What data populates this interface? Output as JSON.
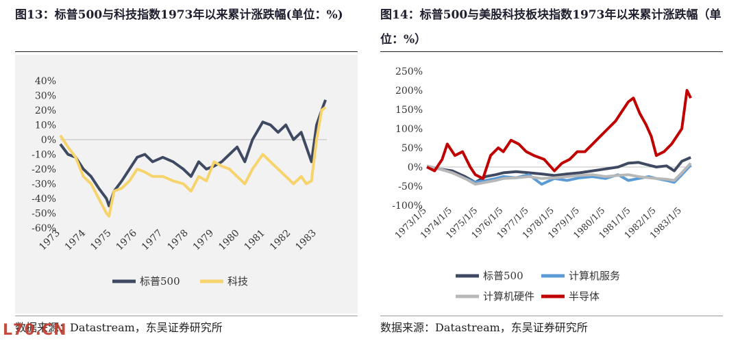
{
  "left": {
    "title": "图13：标普500与科技指数1973年以来累计涨跌幅(单位：%)",
    "source": "数据来源：Datastream，东吴证券研究所"
  },
  "right": {
    "title": "图14：标普500与美股科技板块指数1973年以来累计涨跌幅（单位：%）",
    "source": "数据来源：Datastream，东吴证券研究所"
  },
  "watermark": "L70.CN",
  "chart_data": [
    {
      "type": "line",
      "title": "标普500与科技指数1973年以来累计涨跌幅",
      "ylim": [
        -60,
        40
      ],
      "yticks": [
        "40%",
        "30%",
        "20%",
        "10%",
        "0%",
        "-10%",
        "-20%",
        "-30%",
        "-40%",
        "-50%",
        "-60%"
      ],
      "ytick_values": [
        40,
        30,
        20,
        10,
        0,
        -10,
        -20,
        -30,
        -40,
        -50,
        -60
      ],
      "xlim": [
        1973,
        1983.4
      ],
      "xticks": [
        "1973",
        "1974",
        "1975",
        "1976",
        "1977",
        "1978",
        "1979",
        "1980",
        "1981",
        "1982",
        "1983"
      ],
      "xtick_values": [
        1973,
        1974,
        1975,
        1976,
        1977,
        1978,
        1979,
        1980,
        1981,
        1982,
        1983
      ],
      "legend": "bottom",
      "series": [
        {
          "name": "标普500",
          "color": "#3f4a62",
          "x": [
            1973.0,
            1973.3,
            1973.6,
            1973.9,
            1974.2,
            1974.5,
            1974.8,
            1974.9,
            1975.1,
            1975.4,
            1975.7,
            1976.0,
            1976.3,
            1976.6,
            1977.0,
            1977.4,
            1977.8,
            1978.1,
            1978.4,
            1978.7,
            1979.0,
            1979.3,
            1979.6,
            1979.9,
            1980.2,
            1980.5,
            1980.9,
            1981.2,
            1981.5,
            1981.8,
            1982.1,
            1982.4,
            1982.6,
            1982.8,
            1983.0,
            1983.2,
            1983.35
          ],
          "y": [
            -3,
            -10,
            -12,
            -20,
            -25,
            -33,
            -40,
            -45,
            -35,
            -28,
            -20,
            -12,
            -10,
            -15,
            -12,
            -15,
            -20,
            -25,
            -15,
            -20,
            -18,
            -15,
            -10,
            -5,
            -15,
            0,
            12,
            10,
            5,
            10,
            0,
            5,
            -5,
            -15,
            10,
            20,
            27
          ]
        },
        {
          "name": "科技",
          "color": "#f6d36b",
          "x": [
            1973.0,
            1973.3,
            1973.6,
            1973.9,
            1974.2,
            1974.5,
            1974.8,
            1974.9,
            1975.1,
            1975.4,
            1975.7,
            1976.0,
            1976.3,
            1976.6,
            1977.0,
            1977.4,
            1977.8,
            1978.1,
            1978.4,
            1978.7,
            1979.0,
            1979.3,
            1979.6,
            1979.9,
            1980.2,
            1980.5,
            1980.9,
            1981.2,
            1981.5,
            1981.8,
            1982.1,
            1982.4,
            1982.6,
            1982.8,
            1983.0,
            1983.2,
            1983.35
          ],
          "y": [
            3,
            -5,
            -12,
            -25,
            -30,
            -40,
            -50,
            -52,
            -35,
            -33,
            -28,
            -20,
            -22,
            -25,
            -25,
            -28,
            -30,
            -35,
            -25,
            -28,
            -15,
            -18,
            -20,
            -25,
            -30,
            -20,
            -10,
            -15,
            -20,
            -25,
            -30,
            -25,
            -30,
            -28,
            0,
            20,
            22
          ]
        }
      ]
    },
    {
      "type": "line",
      "title": "标普500与美股科技板块指数1973年以来累计涨跌幅",
      "ylim": [
        -100,
        250
      ],
      "yticks": [
        "250%",
        "200%",
        "150%",
        "100%",
        "50%",
        "0%",
        "-50%",
        "-100%"
      ],
      "ytick_values": [
        250,
        200,
        150,
        100,
        50,
        0,
        -50,
        -100
      ],
      "xlim": [
        1973,
        1983.4
      ],
      "xticks": [
        "1973/1/5",
        "1974/1/5",
        "1975/1/5",
        "1976/1/5",
        "1977/1/5",
        "1978/1/5",
        "1979/1/5",
        "1980/1/5",
        "1981/1/5",
        "1982/1/5",
        "1983/1/5"
      ],
      "xtick_values": [
        1973,
        1974,
        1975,
        1976,
        1977,
        1978,
        1979,
        1980,
        1981,
        1982,
        1983
      ],
      "legend": "bottom",
      "series": [
        {
          "name": "标普500",
          "color": "#3f4a62",
          "x": [
            1973.0,
            1973.5,
            1974.0,
            1974.5,
            1974.9,
            1975.3,
            1975.7,
            1976.0,
            1976.5,
            1977.0,
            1977.5,
            1978.0,
            1978.5,
            1979.0,
            1979.5,
            1980.0,
            1980.5,
            1980.9,
            1981.3,
            1981.7,
            1982.0,
            1982.4,
            1982.7,
            1983.0,
            1983.35
          ],
          "y": [
            0,
            -5,
            -10,
            -25,
            -40,
            -25,
            -20,
            -15,
            -12,
            -15,
            -18,
            -22,
            -18,
            -15,
            -10,
            -5,
            0,
            10,
            12,
            5,
            0,
            3,
            -10,
            15,
            25
          ]
        },
        {
          "name": "计算机服务",
          "color": "#5b9bd5",
          "x": [
            1973.0,
            1973.5,
            1974.0,
            1974.5,
            1974.9,
            1975.3,
            1975.7,
            1976.0,
            1976.5,
            1977.0,
            1977.5,
            1978.0,
            1978.5,
            1979.0,
            1979.5,
            1980.0,
            1980.5,
            1980.9,
            1981.3,
            1981.7,
            1982.0,
            1982.4,
            1982.7,
            1983.0,
            1983.35
          ],
          "y": [
            0,
            -5,
            -15,
            -30,
            -40,
            -35,
            -30,
            -25,
            -28,
            -20,
            -45,
            -30,
            -35,
            -28,
            -25,
            -30,
            -20,
            -35,
            -30,
            -25,
            -30,
            -35,
            -40,
            -20,
            5
          ]
        },
        {
          "name": "计算机硬件",
          "color": "#b8b8b8",
          "x": [
            1973.0,
            1973.5,
            1974.0,
            1974.5,
            1974.9,
            1975.3,
            1975.7,
            1976.0,
            1976.5,
            1977.0,
            1977.5,
            1978.0,
            1978.5,
            1979.0,
            1979.5,
            1980.0,
            1980.5,
            1980.9,
            1981.3,
            1981.7,
            1982.0,
            1982.4,
            1982.7,
            1983.0,
            1983.35
          ],
          "y": [
            3,
            -5,
            -15,
            -30,
            -45,
            -40,
            -35,
            -30,
            -28,
            -25,
            -30,
            -28,
            -25,
            -22,
            -20,
            -25,
            -22,
            -20,
            -25,
            -28,
            -30,
            -32,
            -35,
            -15,
            10
          ]
        },
        {
          "name": "半导体",
          "color": "#c00000",
          "x": [
            1973.0,
            1973.3,
            1973.6,
            1973.8,
            1974.1,
            1974.4,
            1974.7,
            1974.9,
            1975.2,
            1975.5,
            1975.8,
            1976.0,
            1976.3,
            1976.6,
            1976.9,
            1977.2,
            1977.6,
            1978.0,
            1978.3,
            1978.6,
            1978.9,
            1979.2,
            1979.5,
            1979.8,
            1980.1,
            1980.4,
            1980.7,
            1980.9,
            1981.1,
            1981.35,
            1981.6,
            1981.8,
            1982.0,
            1982.3,
            1982.6,
            1982.8,
            1983.0,
            1983.2,
            1983.35
          ],
          "y": [
            0,
            -10,
            20,
            60,
            30,
            40,
            0,
            -20,
            -30,
            30,
            50,
            40,
            70,
            60,
            40,
            30,
            20,
            -10,
            10,
            20,
            40,
            40,
            60,
            80,
            100,
            120,
            150,
            170,
            180,
            140,
            110,
            80,
            30,
            40,
            60,
            80,
            100,
            200,
            180
          ]
        }
      ]
    }
  ]
}
